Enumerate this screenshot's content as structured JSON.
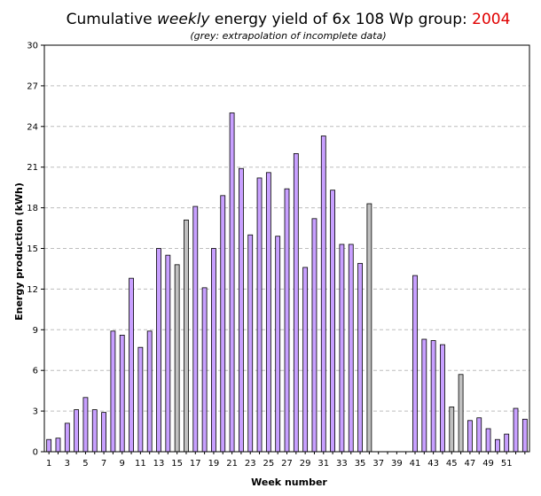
{
  "chart_data": {
    "type": "bar",
    "title": {
      "prefix": "Cumulative ",
      "emph": "weekly",
      "mid": " energy yield of 6x 108 Wp group: ",
      "year": "2004"
    },
    "subtitle": "(grey: extrapolation of incomplete data)",
    "xlabel": "Week number",
    "ylabel": "Energy production (kWh)",
    "ylim": [
      0,
      30
    ],
    "yticks": [
      "0",
      "3",
      "6",
      "9",
      "12",
      "15",
      "18",
      "21",
      "24",
      "27",
      "30"
    ],
    "xticks": [
      "1",
      "3",
      "5",
      "7",
      "9",
      "11",
      "13",
      "15",
      "17",
      "19",
      "21",
      "23",
      "25",
      "27",
      "29",
      "31",
      "33",
      "35",
      "37",
      "39",
      "41",
      "43",
      "45",
      "47",
      "49",
      "51"
    ],
    "grid": true,
    "colors": {
      "measured": "#c8a0ff",
      "extrapolated": "#c0c0c0",
      "outline": "#000000",
      "year": "#e00000"
    },
    "weeks": [
      1,
      2,
      3,
      4,
      5,
      6,
      7,
      8,
      9,
      10,
      11,
      12,
      13,
      14,
      15,
      16,
      17,
      18,
      19,
      20,
      21,
      22,
      23,
      24,
      25,
      26,
      27,
      28,
      29,
      30,
      31,
      32,
      33,
      34,
      35,
      36,
      37,
      38,
      39,
      40,
      41,
      42,
      43,
      44,
      45,
      46,
      47,
      48,
      49,
      50,
      51,
      52,
      53
    ],
    "values": [
      0.9,
      1.0,
      2.1,
      3.1,
      4.0,
      3.1,
      2.9,
      8.9,
      8.6,
      12.8,
      7.7,
      8.9,
      15.0,
      14.5,
      13.8,
      17.1,
      18.1,
      12.1,
      15.0,
      18.9,
      25.0,
      20.9,
      16.0,
      20.2,
      20.6,
      15.9,
      19.4,
      22.0,
      13.6,
      17.2,
      23.3,
      19.3,
      15.3,
      15.3,
      13.9,
      18.3,
      null,
      null,
      null,
      null,
      13.0,
      8.3,
      8.2,
      7.9,
      3.3,
      5.7,
      2.3,
      2.5,
      1.7,
      0.9,
      1.3,
      3.2,
      2.4
    ],
    "extrapolated": [
      false,
      false,
      false,
      false,
      false,
      false,
      false,
      false,
      false,
      false,
      false,
      false,
      false,
      false,
      true,
      true,
      false,
      false,
      false,
      false,
      false,
      false,
      false,
      false,
      false,
      false,
      false,
      false,
      false,
      false,
      false,
      false,
      false,
      false,
      false,
      true,
      false,
      false,
      false,
      false,
      false,
      false,
      false,
      false,
      true,
      true,
      false,
      false,
      false,
      false,
      false,
      false,
      false
    ]
  }
}
